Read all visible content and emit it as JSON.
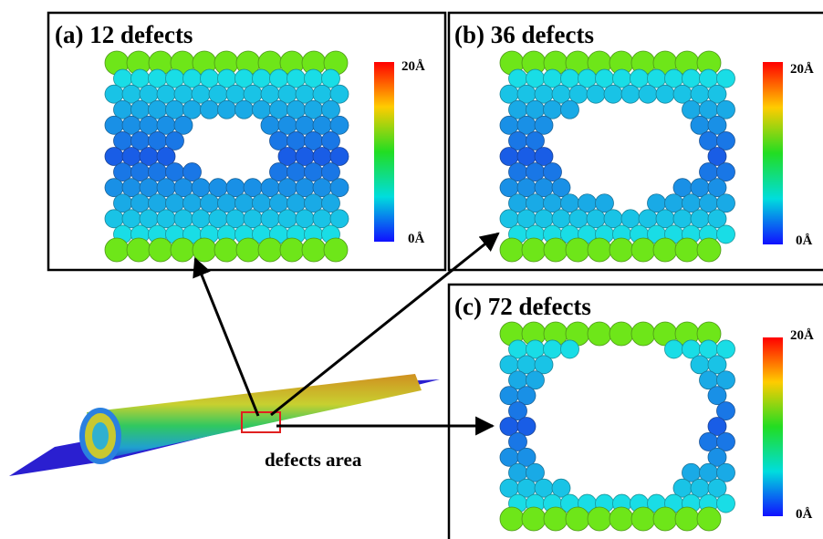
{
  "panels": [
    {
      "title": "(a) 12 defects",
      "colorbar": {
        "max": "20Å",
        "min": "0Å"
      }
    },
    {
      "title": "(b) 36 defects",
      "colorbar": {
        "max": "20Å",
        "min": "0Å"
      }
    },
    {
      "title": "(c) 72 defects",
      "colorbar": {
        "max": "20Å",
        "min": "0Å"
      }
    }
  ],
  "annotation": "defects area"
}
